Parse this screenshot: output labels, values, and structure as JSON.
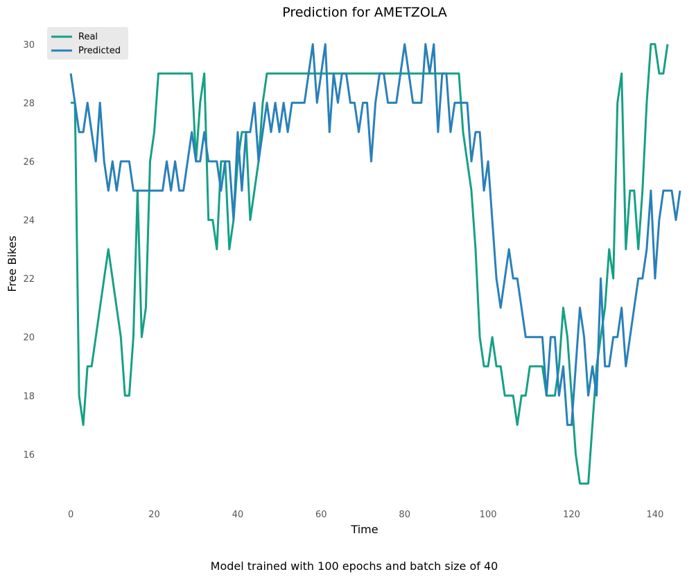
{
  "chart_data": {
    "type": "line",
    "title": "Prediction for AMETZOLA",
    "xlabel": "Time",
    "ylabel": "Free Bikes",
    "caption": "Model trained with 100 epochs and batch size of 40",
    "xlim": [
      -4,
      145
    ],
    "ylim": [
      14.2,
      30.8
    ],
    "xticks": [
      0,
      20,
      40,
      60,
      80,
      100,
      120,
      140
    ],
    "yticks": [
      16,
      18,
      20,
      22,
      24,
      26,
      28,
      30
    ],
    "grid": false,
    "legend_position": "top-left",
    "series": [
      {
        "name": "Real",
        "color": "#16a085",
        "values": [
          28,
          28,
          18,
          17,
          19,
          19,
          20,
          21,
          22,
          23,
          22,
          21,
          20,
          18,
          18,
          20,
          25,
          20,
          21,
          26,
          27,
          29,
          29,
          29,
          29,
          29,
          29,
          29,
          29,
          29,
          26,
          28,
          29,
          24,
          24,
          23,
          26,
          26,
          23,
          24,
          26,
          27,
          27,
          24,
          25,
          26,
          28,
          29,
          29,
          29,
          29,
          29,
          29,
          29,
          29,
          29,
          29,
          29,
          29,
          29,
          29,
          29,
          29,
          29,
          29,
          29,
          29,
          29,
          29,
          29,
          29,
          29,
          29,
          29,
          29,
          29,
          29,
          29,
          29,
          29,
          29,
          29,
          29,
          29,
          29,
          29,
          29,
          29,
          29,
          29,
          29,
          29,
          29,
          29,
          27,
          26,
          25,
          23,
          20,
          19,
          19,
          20,
          19,
          19,
          18,
          18,
          18,
          17,
          18,
          18,
          19,
          19,
          19,
          19,
          18,
          18,
          18,
          19,
          21,
          20,
          18,
          16,
          15,
          15,
          15,
          17,
          19,
          20,
          21,
          23,
          22,
          28,
          29,
          23,
          25,
          25,
          23,
          25,
          28,
          30,
          30,
          29,
          29,
          30
        ]
      },
      {
        "name": "Predicted",
        "color": "#2980b9",
        "values": [
          29,
          28,
          27,
          27,
          28,
          27,
          26,
          28,
          26,
          25,
          26,
          25,
          26,
          26,
          26,
          25,
          25,
          25,
          25,
          25,
          25,
          25,
          25,
          26,
          25,
          26,
          25,
          25,
          26,
          27,
          26,
          26,
          27,
          26,
          26,
          26,
          25,
          26,
          26,
          24,
          27,
          25,
          27,
          27,
          28,
          26,
          27,
          28,
          27,
          28,
          27,
          28,
          27,
          28,
          28,
          28,
          28,
          29,
          30,
          28,
          29,
          30,
          27,
          29,
          28,
          29,
          29,
          28,
          28,
          27,
          28,
          28,
          26,
          28,
          29,
          29,
          28,
          28,
          28,
          29,
          30,
          29,
          28,
          28,
          28,
          30,
          29,
          30,
          27,
          29,
          29,
          27,
          28,
          28,
          28,
          28,
          26,
          27,
          27,
          25,
          26,
          24,
          22,
          21,
          22,
          23,
          22,
          22,
          21,
          20,
          20,
          20,
          20,
          20,
          18,
          20,
          20,
          18,
          19,
          17,
          17,
          19,
          21,
          20,
          18,
          19,
          18,
          22,
          19,
          19,
          20,
          20,
          21,
          19,
          20,
          21,
          22,
          22,
          23,
          25,
          22,
          24,
          25,
          25,
          25,
          24,
          25
        ]
      }
    ]
  }
}
